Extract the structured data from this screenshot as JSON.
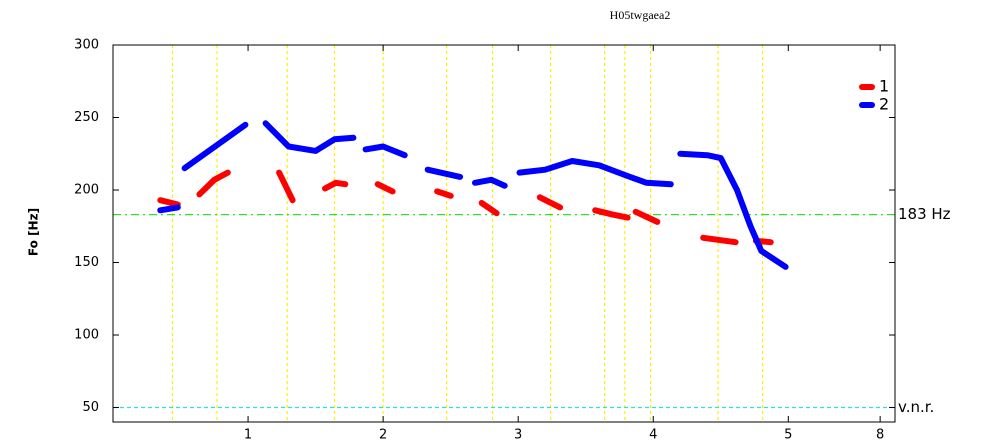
{
  "chart_data": {
    "type": "line",
    "title": "H05twgaea2",
    "y_label": "Fo [Hz]",
    "xlim": [
      0,
      5.79
    ],
    "ylim": [
      40,
      300
    ],
    "xticks": [
      1,
      2,
      3,
      4,
      5,
      {
        "value": 5.68,
        "label": "8"
      }
    ],
    "yticks": [
      50,
      100,
      150,
      200,
      250,
      300
    ],
    "legend": "northeast",
    "vlines": {
      "color": "#ffee00",
      "values": [
        0.44,
        0.77,
        1.29,
        1.64,
        2.0,
        2.47,
        2.81,
        3.24,
        3.64,
        3.79,
        3.98,
        4.48,
        4.81
      ]
    },
    "hlines": [
      {
        "value": 183,
        "label": "183 Hz",
        "color": "#33dd33"
      },
      {
        "value": 50,
        "label": "v.n.r.",
        "color": "#33dddd"
      }
    ],
    "series": [
      {
        "name": "1",
        "color": "#ff0000",
        "x": [
          0.35,
          0.48,
          null,
          0.64,
          0.75,
          0.85,
          null,
          1.23,
          1.33,
          null,
          1.57,
          1.65,
          1.72,
          null,
          1.96,
          2.07,
          null,
          2.4,
          2.5,
          null,
          2.73,
          2.84,
          null,
          3.16,
          3.31,
          null,
          3.57,
          3.7,
          3.81,
          null,
          3.87,
          4.03,
          null,
          4.37,
          4.61,
          null,
          4.76,
          4.87
        ],
        "values": [
          193,
          190,
          null,
          197,
          207,
          212,
          null,
          212,
          193,
          null,
          201,
          205,
          204,
          null,
          204,
          199,
          null,
          199,
          196,
          null,
          191,
          184,
          null,
          195,
          188,
          null,
          186,
          183,
          181,
          null,
          185,
          178,
          null,
          167,
          164,
          null,
          165,
          164
        ]
      },
      {
        "name": "2",
        "color": "#0000ff",
        "x": [
          0.35,
          0.48,
          null,
          0.53,
          0.98,
          null,
          1.13,
          1.3,
          1.5,
          1.64,
          1.78,
          null,
          1.87,
          2.0,
          2.16,
          null,
          2.33,
          2.57,
          null,
          2.68,
          2.8,
          2.9,
          null,
          3.01,
          3.2,
          3.4,
          3.6,
          3.8,
          3.95,
          4.13,
          null,
          4.2,
          4.4,
          4.5,
          4.62,
          4.72,
          4.8,
          4.98
        ],
        "values": [
          186,
          188,
          null,
          215,
          245,
          null,
          246,
          230,
          227,
          235,
          236,
          null,
          228,
          230,
          224,
          null,
          214,
          209,
          null,
          205,
          207,
          203,
          null,
          212,
          214,
          220,
          217,
          210,
          205,
          204,
          null,
          225,
          224,
          222,
          200,
          175,
          158,
          147
        ]
      }
    ]
  }
}
